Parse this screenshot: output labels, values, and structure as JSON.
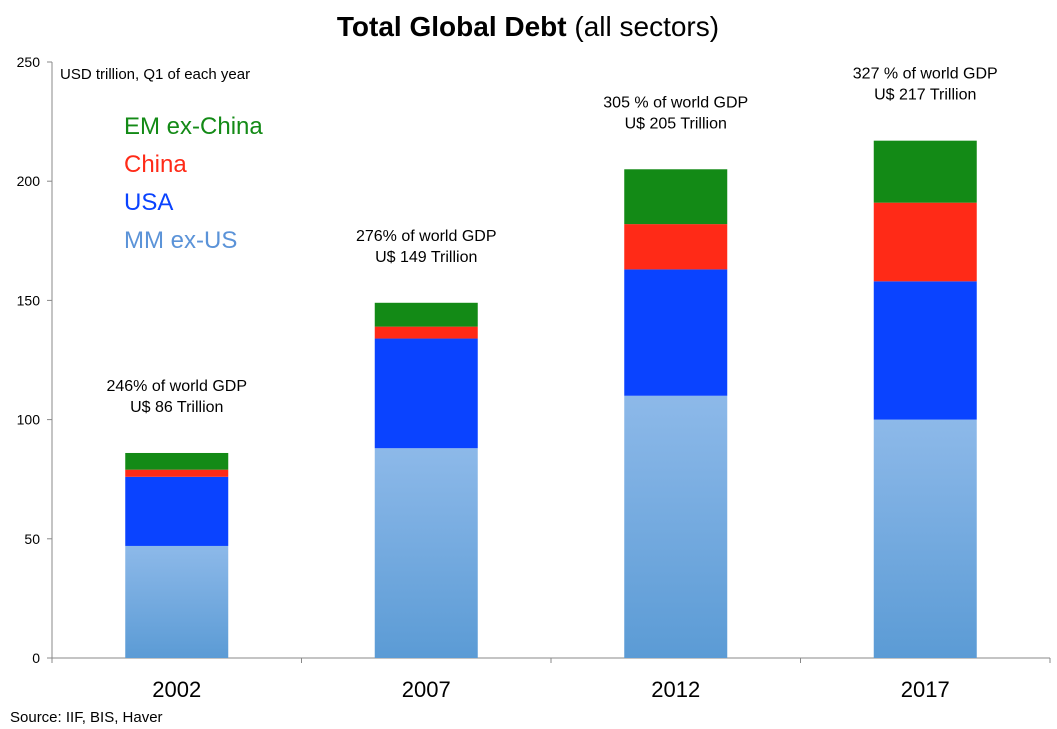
{
  "chart_data": {
    "type": "bar",
    "stacked": true,
    "title": {
      "bold": "Total Global Debt",
      "rest": " (all sectors)"
    },
    "unit_note": "USD trillion, Q1 of each year",
    "source": "Source: IIF, BIS, Haver",
    "categories": [
      "2002",
      "2007",
      "2012",
      "2017"
    ],
    "ylim": [
      0,
      250
    ],
    "yticks": [
      0,
      50,
      100,
      150,
      200,
      250
    ],
    "series": [
      {
        "name": "MM ex-US",
        "color": "#5b9bd5",
        "values": [
          47,
          88,
          110,
          100
        ]
      },
      {
        "name": "USA",
        "color": "#0a43ff",
        "values": [
          29,
          46,
          53,
          58
        ]
      },
      {
        "name": "China",
        "color": "#ff2a17",
        "values": [
          3,
          5,
          19,
          33
        ]
      },
      {
        "name": "EM ex-China",
        "color": "#138a16",
        "values": [
          7,
          10,
          23,
          26
        ]
      }
    ],
    "legend": {
      "placement": "top-left",
      "order": [
        "EM ex-China",
        "China",
        "USA",
        "MM ex-US"
      ]
    },
    "annotations": [
      {
        "category": "2002",
        "lines": [
          "246% of world GDP",
          "U$ 86 Trillion"
        ]
      },
      {
        "category": "2007",
        "lines": [
          "276% of world GDP",
          "U$ 149 Trillion"
        ]
      },
      {
        "category": "2012",
        "lines": [
          "305 % of world GDP",
          "U$ 205 Trillion"
        ]
      },
      {
        "category": "2017",
        "lines": [
          "327 % of world GDP",
          "U$ 217 Trillion"
        ]
      }
    ]
  }
}
